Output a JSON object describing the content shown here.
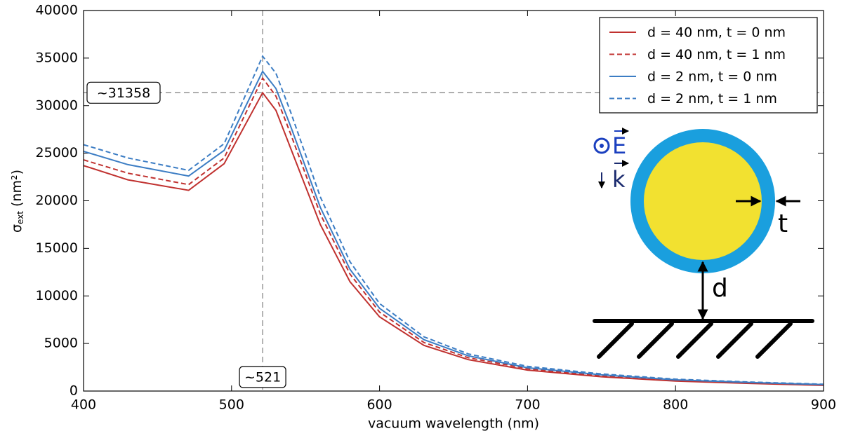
{
  "chart_data": {
    "type": "line",
    "x_label": "vacuum wavelength (nm)",
    "y_label": {
      "symbol": "σ",
      "subscript": "ext",
      "unit": "(nm²)"
    },
    "x": [
      400,
      430,
      471,
      495,
      521,
      530,
      540,
      560,
      580,
      600,
      630,
      660,
      700,
      750,
      800,
      850,
      900
    ],
    "series": [
      {
        "name": "d = 40 nm, t = 0 nm",
        "color": "#c0312f",
        "linestyle": "solid",
        "values": [
          23700,
          22200,
          21100,
          23900,
          31358,
          29500,
          25500,
          17500,
          11500,
          7800,
          4800,
          3300,
          2200,
          1500,
          1050,
          800,
          600
        ]
      },
      {
        "name": "d = 40 nm, t = 1 nm",
        "color": "#c0312f",
        "linestyle": "dashed",
        "values": [
          24300,
          22900,
          21700,
          24500,
          32900,
          31000,
          27000,
          18600,
          12300,
          8300,
          5100,
          3500,
          2350,
          1600,
          1120,
          850,
          650
        ]
      },
      {
        "name": "d = 2 nm, t = 0 nm",
        "color": "#3c7dc4",
        "linestyle": "solid",
        "values": [
          25200,
          23800,
          22600,
          25300,
          33600,
          31800,
          27800,
          19300,
          12800,
          8700,
          5400,
          3700,
          2450,
          1700,
          1180,
          900,
          680
        ]
      },
      {
        "name": "d = 2 nm, t = 1 nm",
        "color": "#3c7dc4",
        "linestyle": "dashed",
        "values": [
          25900,
          24500,
          23200,
          26000,
          35200,
          33400,
          29300,
          20400,
          13600,
          9200,
          5700,
          3900,
          2600,
          1800,
          1250,
          950,
          720
        ]
      }
    ],
    "xlim": [
      400,
      900
    ],
    "xticks": [
      400,
      500,
      600,
      700,
      800,
      900
    ],
    "ylim": [
      0,
      40000
    ],
    "yticks": [
      0,
      5000,
      10000,
      15000,
      20000,
      25000,
      30000,
      35000,
      40000
    ],
    "legend": "upper right",
    "annotations": [
      {
        "axis": "y",
        "value": 31358,
        "label": "~31358"
      },
      {
        "axis": "x",
        "value": 521,
        "label": "~521"
      }
    ],
    "inset": {
      "field_label": "E",
      "wave_label": "k",
      "thickness_label": "t",
      "distance_label": "d"
    }
  }
}
